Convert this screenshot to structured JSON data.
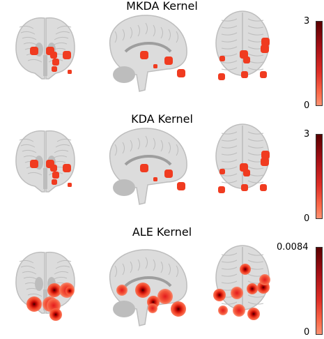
{
  "panels": [
    {
      "title": "MKDA Kernel",
      "colorbar_max": "3",
      "colorbar_min": "0",
      "blob_style": "solid"
    },
    {
      "title": "KDA Kernel",
      "colorbar_max": "3",
      "colorbar_min": "0",
      "blob_style": "solid"
    },
    {
      "title": "ALE Kernel",
      "colorbar_max": "0.0084",
      "colorbar_min": "0",
      "blob_style": "gradient"
    }
  ],
  "colors": {
    "blob": "#f03b20",
    "blob_dark": "#7a0000",
    "brain_light": "#dcdcdc",
    "brain_mid": "#bdbdbd",
    "brain_dark": "#9e9e9e"
  }
}
